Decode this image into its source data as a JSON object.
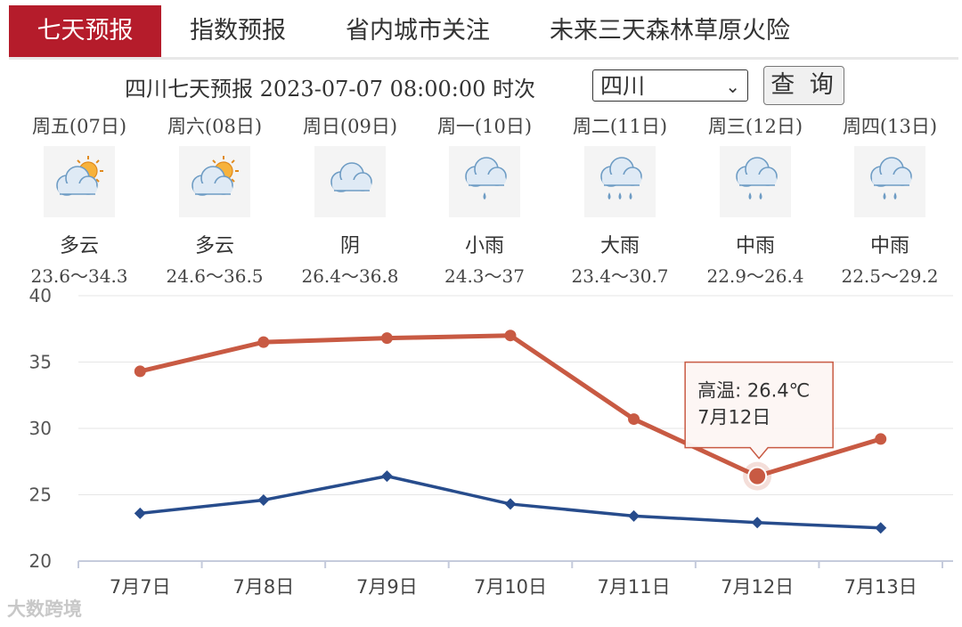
{
  "tabs": [
    {
      "label": "七天预报",
      "active": true
    },
    {
      "label": "指数预报",
      "active": false
    },
    {
      "label": "省内城市关注",
      "active": false
    },
    {
      "label": "未来三天森林草原火险",
      "active": false
    }
  ],
  "query": {
    "text": "四川七天预报 2023-07-07 08:00:00 时次",
    "province_value": "四川",
    "button_label": "查 询"
  },
  "forecast": [
    {
      "day": "周五(07日)",
      "weather": "多云",
      "icon": "partly-cloudy-icon",
      "range": "23.6～34.3"
    },
    {
      "day": "周六(08日)",
      "weather": "多云",
      "icon": "partly-cloudy-icon",
      "range": "24.6～36.5"
    },
    {
      "day": "周日(09日)",
      "weather": "阴",
      "icon": "overcast-icon",
      "range": "26.4～36.8"
    },
    {
      "day": "周一(10日)",
      "weather": "小雨",
      "icon": "light-rain-icon",
      "range": "24.3～37"
    },
    {
      "day": "周二(11日)",
      "weather": "大雨",
      "icon": "heavy-rain-icon",
      "range": "23.4～30.7"
    },
    {
      "day": "周三(12日)",
      "weather": "中雨",
      "icon": "moderate-rain-icon",
      "range": "22.9～26.4"
    },
    {
      "day": "周四(13日)",
      "weather": "中雨",
      "icon": "moderate-rain-icon",
      "range": "22.5～29.2"
    }
  ],
  "chart_data": {
    "type": "line",
    "categories": [
      "7月7日",
      "7月8日",
      "7月9日",
      "7月10日",
      "7月11日",
      "7月12日",
      "7月13日"
    ],
    "ylim": [
      20,
      40
    ],
    "yticks": [
      20,
      25,
      30,
      35,
      40
    ],
    "grid": true,
    "series": [
      {
        "values": [
          34.3,
          36.5,
          36.8,
          37,
          30.7,
          26.4,
          29.2
        ],
        "color": "#c85a43",
        "marker": "circle"
      },
      {
        "values": [
          23.6,
          24.6,
          26.4,
          24.3,
          23.4,
          22.9,
          22.5
        ],
        "color": "#274c8c",
        "marker": "diamond"
      }
    ],
    "tooltip": {
      "line1": "高温: 26.4℃",
      "line2": "7月12日",
      "index": 5,
      "series": 0
    }
  },
  "watermark": "大数跨境"
}
